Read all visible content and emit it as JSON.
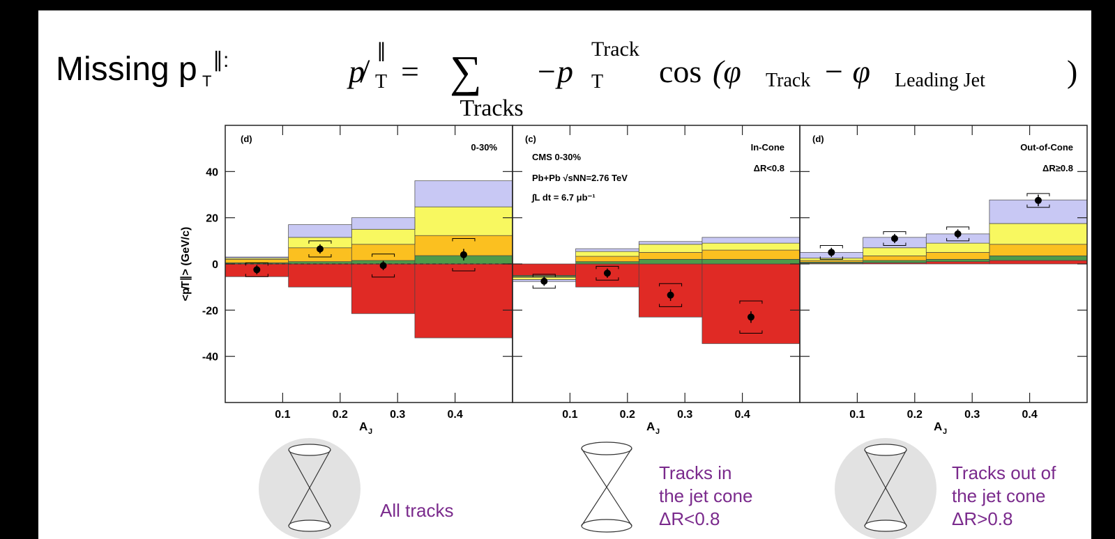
{
  "slide": {
    "title": "Missing p",
    "title_sub": "T",
    "title_sup": "∥:",
    "formula": [
      "p̸",
      "∥",
      "T",
      "=",
      "∑",
      "Tracks",
      "−p",
      "Track",
      "T",
      "cos",
      "(φ",
      "Track",
      "− φ",
      "Leading Jet",
      ")"
    ],
    "captions": [
      [
        "All tracks"
      ],
      [
        "Tracks in",
        "the jet cone",
        "ΔR<0.8"
      ],
      [
        "Tracks out of",
        "the jet cone",
        "ΔR>0.8"
      ]
    ]
  },
  "chart_data": [
    {
      "type": "stacked-histogram",
      "y_label": "<p̸T∥> (GeV/c)",
      "x_label": "A",
      "x_label_sub": "J",
      "annotations": [
        "(d)",
        "0-30%"
      ],
      "bins": [
        0,
        0.11,
        0.22,
        0.33,
        0.5
      ],
      "xlim": [
        0,
        0.5
      ],
      "xticks": [
        0.1,
        0.2,
        0.3,
        0.4
      ],
      "ylim": [
        -60,
        60
      ],
      "yticks": [
        -40,
        -20,
        0,
        20,
        40
      ],
      "ytick_labels": true,
      "zero_line": true,
      "series": [
        {
          "color": "#e02a25",
          "values": [
            -5.5,
            -10,
            -21.5,
            -32
          ]
        },
        {
          "color": "#4f9a4a",
          "values": [
            0.5,
            1,
            1.5,
            3.6
          ]
        },
        {
          "color": "#fbc020",
          "values": [
            1.5,
            6,
            7,
            8.7
          ]
        },
        {
          "color": "#f8f860",
          "values": [
            0.5,
            4.5,
            6.5,
            12.4
          ]
        },
        {
          "color": "#c8c8f4",
          "values": [
            0.5,
            5.5,
            5,
            11.3
          ]
        }
      ],
      "points": {
        "color": "#000000",
        "x": [
          0.055,
          0.165,
          0.275,
          0.415
        ],
        "values": [
          -2.5,
          6.5,
          -0.7,
          4
        ],
        "errors": [
          2,
          2,
          2,
          2.5
        ],
        "sys": [
          3,
          3.5,
          5,
          7
        ]
      }
    },
    {
      "type": "stacked-histogram",
      "x_label": "A",
      "x_label_sub": "J",
      "annotations": [
        "(c)",
        "CMS 0-30%",
        "Pb+Pb √sNN=2.76 TeV",
        "∫L dt = 6.7 μb⁻¹",
        "In-Cone",
        "ΔR<0.8"
      ],
      "bins": [
        0,
        0.11,
        0.22,
        0.33,
        0.5
      ],
      "xlim": [
        0,
        0.5
      ],
      "xticks": [
        0.1,
        0.2,
        0.3,
        0.4
      ],
      "ylim": [
        -60,
        60
      ],
      "yticks": [
        -40,
        -20,
        0,
        20,
        40
      ],
      "ytick_labels": false,
      "zero_line": false,
      "series": [
        {
          "color": "#e02a25",
          "values": [
            -5,
            -10,
            -23,
            -34.5
          ]
        },
        {
          "color": "#4f9a4a",
          "values": [
            -0.5,
            1,
            2,
            2
          ]
        },
        {
          "color": "#fbc020",
          "values": [
            -0.3,
            2.3,
            3,
            4
          ]
        },
        {
          "color": "#f8f860",
          "values": [
            -1,
            2.1,
            3.5,
            3
          ]
        },
        {
          "color": "#c8c8f4",
          "values": [
            -0.8,
            1.2,
            1.2,
            2.5
          ]
        }
      ],
      "points": {
        "color": "#000000",
        "x": [
          0.055,
          0.165,
          0.275,
          0.415
        ],
        "values": [
          -7.5,
          -4,
          -13.5,
          -23
        ],
        "errors": [
          2,
          2,
          2.5,
          2.5
        ],
        "sys": [
          3,
          3,
          5,
          7
        ]
      }
    },
    {
      "type": "stacked-histogram",
      "x_label": "A",
      "x_label_sub": "J",
      "annotations": [
        "(d)",
        "Out-of-Cone",
        "ΔR≥0.8"
      ],
      "bins": [
        0,
        0.11,
        0.22,
        0.33,
        0.5
      ],
      "xlim": [
        0,
        0.5
      ],
      "xticks": [
        0.1,
        0.2,
        0.3,
        0.4
      ],
      "ylim": [
        -60,
        60
      ],
      "yticks": [
        -40,
        -20,
        0,
        20,
        40
      ],
      "ytick_labels": false,
      "zero_line": false,
      "series": [
        {
          "color": "#e02a25",
          "values": [
            0.3,
            0.5,
            1,
            1.5
          ]
        },
        {
          "color": "#4f9a4a",
          "values": [
            0.5,
            1,
            1,
            2
          ]
        },
        {
          "color": "#fbc020",
          "values": [
            0.7,
            2,
            3,
            5
          ]
        },
        {
          "color": "#f8f860",
          "values": [
            1,
            3.5,
            4,
            9
          ]
        },
        {
          "color": "#c8c8f4",
          "values": [
            2.5,
            4.5,
            4,
            10.2
          ]
        }
      ],
      "points": {
        "color": "#000000",
        "x": [
          0.055,
          0.165,
          0.275,
          0.415
        ],
        "values": [
          5,
          11,
          13,
          27.5
        ],
        "errors": [
          2,
          2,
          2,
          2.5
        ],
        "sys": [
          3,
          3,
          3,
          3
        ]
      }
    }
  ]
}
